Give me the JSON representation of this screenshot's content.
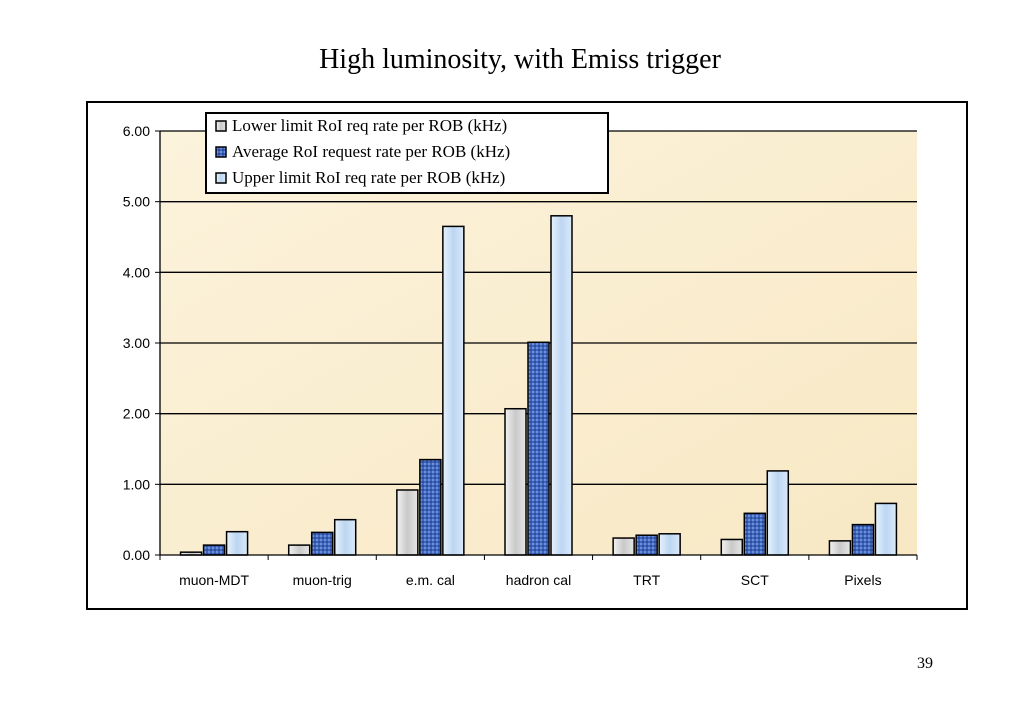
{
  "slide": {
    "title": "High luminosity, with Emiss trigger",
    "page_number": "39"
  },
  "chart_data": {
    "type": "bar",
    "title": "",
    "xlabel": "",
    "ylabel": "",
    "ylim": [
      0,
      6
    ],
    "yticks": [
      "0.00",
      "1.00",
      "2.00",
      "3.00",
      "4.00",
      "5.00",
      "6.00"
    ],
    "grid": true,
    "legend_position": "top-left",
    "categories": [
      "muon-MDT",
      "muon-trig",
      "e.m. cal",
      "hadron cal",
      "TRT",
      "SCT",
      "Pixels"
    ],
    "series": [
      {
        "name": "Lower limit RoI req rate per ROB (kHz)",
        "values": [
          0.04,
          0.14,
          0.92,
          2.07,
          0.24,
          0.22,
          0.2
        ],
        "color": "#d9d9d9"
      },
      {
        "name": "Average RoI request rate per ROB (kHz)",
        "values": [
          0.14,
          0.32,
          1.35,
          3.01,
          0.28,
          0.59,
          0.43
        ],
        "color": "#4a6fc4"
      },
      {
        "name": "Upper limit RoI req rate per ROB (kHz)",
        "values": [
          0.33,
          0.5,
          4.65,
          4.8,
          0.3,
          1.19,
          0.73
        ],
        "color": "#cfe3f8"
      }
    ],
    "plot_background": "#fbf0d6"
  }
}
